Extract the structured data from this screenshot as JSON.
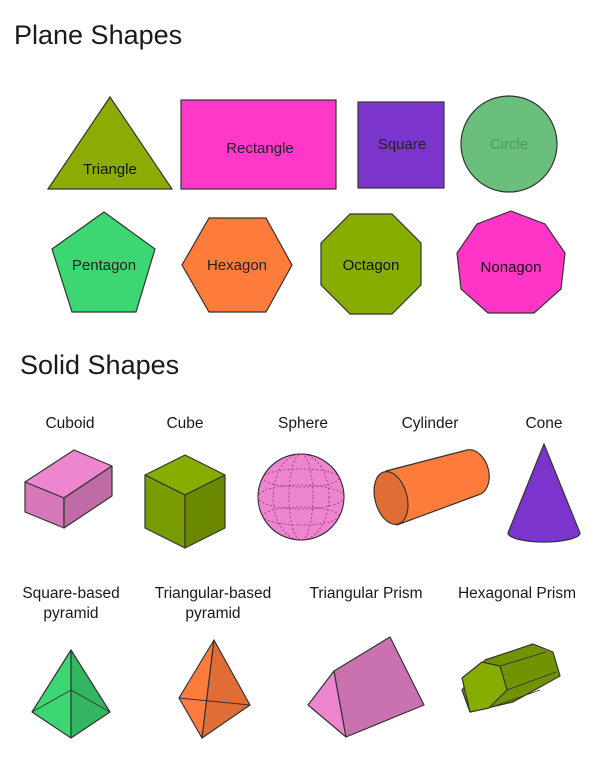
{
  "plane": {
    "heading": "Plane Shapes",
    "shapes": [
      {
        "label": "Triangle",
        "color": "#8aac05"
      },
      {
        "label": "Rectangle",
        "color": "#ff38c9"
      },
      {
        "label": "Square",
        "color": "#7b34cc"
      },
      {
        "label": "Circle",
        "color": "#6bbf7d"
      },
      {
        "label": "Pentagon",
        "color": "#3cd673"
      },
      {
        "label": "Hexagon",
        "color": "#fd7c3c"
      },
      {
        "label": "Octagon",
        "color": "#86ad00"
      },
      {
        "label": "Nonagon",
        "color": "#ff35c8"
      }
    ]
  },
  "solid": {
    "heading": "Solid Shapes",
    "shapes": [
      {
        "label": "Cuboid",
        "color": "#ee86cf"
      },
      {
        "label": "Cube",
        "color": "#86ad00"
      },
      {
        "label": "Sphere",
        "color": "#ee86cf"
      },
      {
        "label": "Cylinder",
        "color": "#fd7c3c"
      },
      {
        "label": "Cone",
        "color": "#7b34cc"
      },
      {
        "label": "Square-based\npyramid",
        "line1": "Square-based",
        "line2": "pyramid",
        "color": "#3cd673"
      },
      {
        "label": "Triangular-based\npyramid",
        "line1": "Triangular-based",
        "line2": "pyramid",
        "color": "#fd7c3c"
      },
      {
        "label": "Triangular Prism",
        "color": "#ee86cf"
      },
      {
        "label": "Hexagonal Prism",
        "color": "#86ad00"
      }
    ]
  }
}
